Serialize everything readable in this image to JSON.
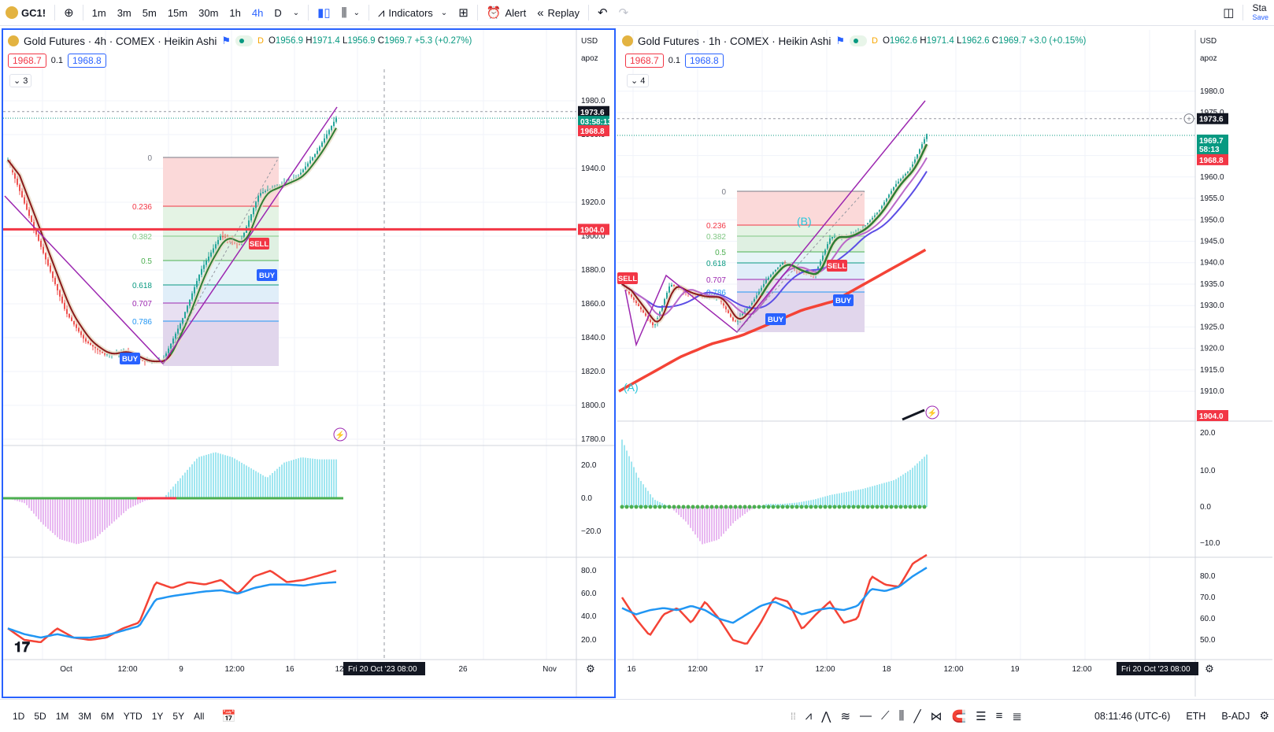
{
  "toolbar": {
    "symbol": "GC1!",
    "timeframes": [
      "1m",
      "3m",
      "5m",
      "15m",
      "30m",
      "1h",
      "4h",
      "D"
    ],
    "active_timeframe": "4h",
    "indicators_label": "Indicators",
    "alert_label": "Alert",
    "replay_label": "Replay",
    "right_text": "Sta",
    "right_subtext": "Save"
  },
  "left": {
    "title": "Gold Futures · 4h · COMEX · Heikin Ashi",
    "o": "1956.9",
    "h": "1971.4",
    "l": "1956.9",
    "c": "1969.7",
    "chg": "+5.3 (+0.27%)",
    "bid": "1968.7",
    "spread": "0.1",
    "ask": "1968.8",
    "collapse": "3",
    "currency": "USD",
    "scale_mode": "apoz",
    "price_ticks": [
      "1980.0",
      "1960.0",
      "1940.0",
      "1920.0",
      "1900.0",
      "1880.0",
      "1860.0",
      "1840.0",
      "1820.0",
      "1800.0",
      "1780.0"
    ],
    "osc_ticks": [
      "20.0",
      "0.0",
      "−20.0"
    ],
    "rsi_ticks": [
      "80.0",
      "60.0",
      "40.0",
      "20.0"
    ],
    "time_ticks": [
      "Oct",
      "12:00",
      "9",
      "12:00",
      "16",
      "12",
      "26",
      "Nov"
    ],
    "last_price": "1973.6",
    "last_countdown": "03:58:13",
    "ask_tag": "1968.8",
    "line_tag": "1904.0",
    "fib_levels": [
      "0",
      "0.236",
      "0.382",
      "0.5",
      "0.618",
      "0.707",
      "0.786"
    ],
    "buy_label": "BUY",
    "sell_label": "SELL",
    "crosshair_time": "Fri 20 Oct '23   08:00"
  },
  "right": {
    "title": "Gold Futures · 1h · COMEX · Heikin Ashi",
    "o": "1962.6",
    "h": "1971.4",
    "l": "1962.6",
    "c": "1969.7",
    "chg": "+3.0 (+0.15%)",
    "bid": "1968.7",
    "spread": "0.1",
    "ask": "1968.8",
    "collapse": "4",
    "currency": "USD",
    "scale_mode": "apoz",
    "price_ticks": [
      "1980.0",
      "1975.0",
      "1965.0",
      "1960.0",
      "1955.0",
      "1950.0",
      "1945.0",
      "1940.0",
      "1935.0",
      "1930.0",
      "1925.0",
      "1920.0",
      "1915.0",
      "1910.0"
    ],
    "osc_ticks": [
      "20.0",
      "10.0",
      "0.0",
      "−10.0"
    ],
    "rsi_ticks": [
      "80.0",
      "70.0",
      "60.0",
      "50.0"
    ],
    "time_ticks": [
      "16",
      "12:00",
      "17",
      "12:00",
      "18",
      "12:00",
      "19",
      "12:00"
    ],
    "last_price": "1973.6",
    "price_tag": "1969.7",
    "countdown": "58:13",
    "ask_tag": "1968.8",
    "line_tag": "1904.0",
    "fib_levels": [
      "0",
      "0.236",
      "0.382",
      "0.5",
      "0.618",
      "0.707",
      "0.786"
    ],
    "wave_a": "(A)",
    "wave_b": "(B)",
    "buy_label": "BUY",
    "sell_label": "SELL",
    "crosshair_time": "Fri 20 Oct '23   08:00"
  },
  "bottom": {
    "ranges": [
      "1D",
      "5D",
      "1M",
      "3M",
      "6M",
      "YTD",
      "1Y",
      "5Y",
      "All"
    ],
    "clock": "08:11:46 (UTC-6)",
    "session": "ETH",
    "adj": "B-ADJ"
  }
}
